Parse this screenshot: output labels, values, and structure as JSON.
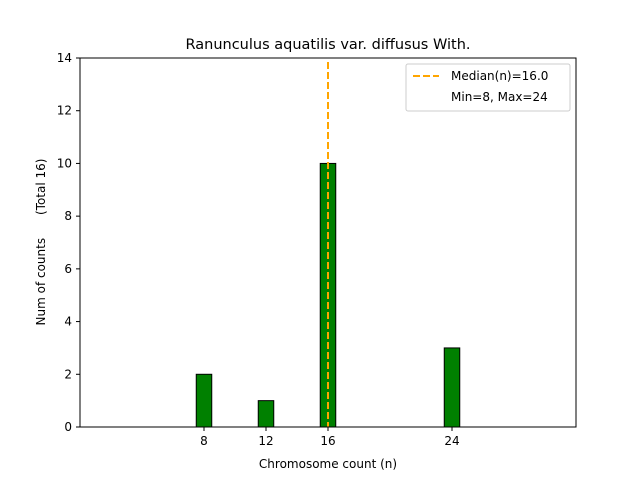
{
  "chart_data": {
    "type": "bar",
    "title": "Ranunculus aquatilis var. diffusus With.",
    "xlabel": "Chromosome count (n)",
    "ylabel": "Num of counts",
    "ylabel_note": "(Total 16)",
    "x": [
      8,
      12,
      16,
      24
    ],
    "values": [
      2,
      1,
      10,
      3
    ],
    "xticks": [
      8,
      12,
      16,
      24
    ],
    "yticks": [
      0,
      2,
      4,
      6,
      8,
      10,
      12,
      14
    ],
    "xlim": [
      0,
      32
    ],
    "ylim": [
      0,
      14
    ],
    "bar_width": 1,
    "bar_color": "#008000",
    "bar_edge_color": "#000000",
    "median": 16.0,
    "median_color": "#ffa500",
    "grid": false,
    "legend": {
      "placement": "top-right",
      "entries": [
        "Median(n)=16.0",
        "Min=8, Max=24"
      ]
    },
    "baseline_line": {
      "x_start": 0,
      "x_end": 27.5
    }
  }
}
